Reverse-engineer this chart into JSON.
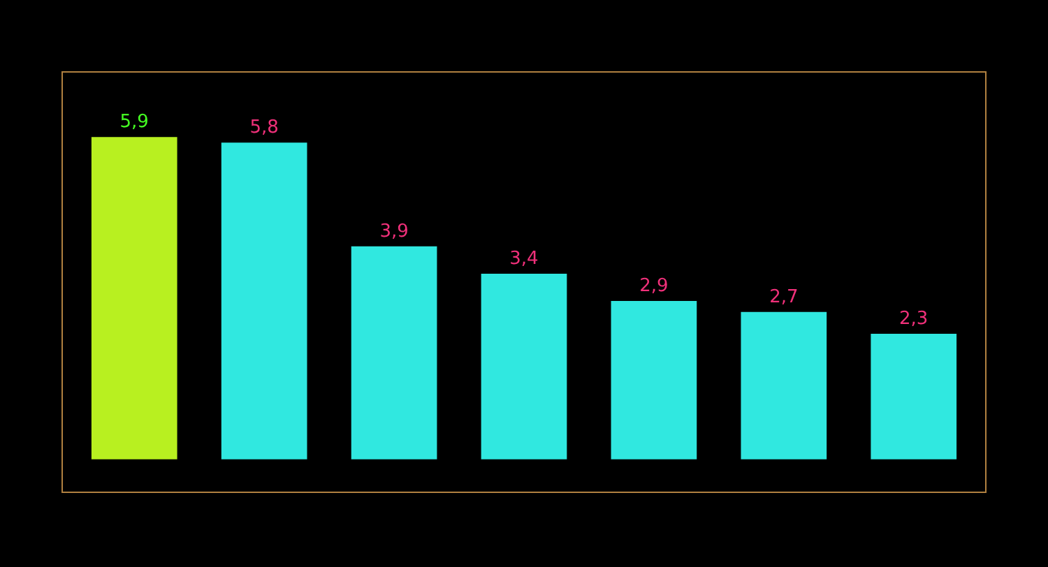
{
  "chart_data": {
    "type": "bar",
    "categories": [
      null,
      null,
      null,
      null,
      null,
      null,
      null
    ],
    "values": [
      5.9,
      5.8,
      3.9,
      3.4,
      2.9,
      2.7,
      2.3
    ],
    "colors": [
      "#b8f020",
      "#30e8e0",
      "#30e8e0",
      "#30e8e0",
      "#30e8e0",
      "#30e8e0",
      "#30e8e0"
    ],
    "value_labels": [
      "5,9",
      "5,8",
      "3,9",
      "3,4",
      "2,9",
      "2,7",
      "2,3"
    ],
    "grid": false,
    "legend": false
  }
}
